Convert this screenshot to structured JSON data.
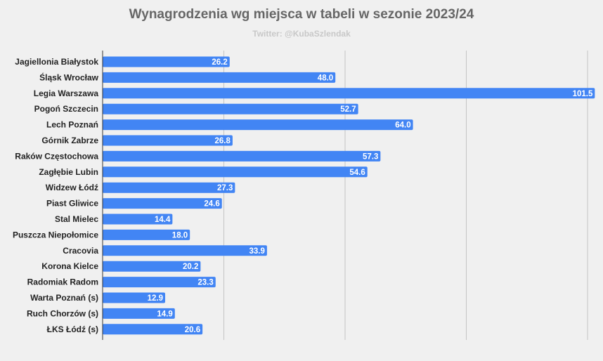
{
  "chart_data": {
    "type": "bar",
    "orientation": "horizontal",
    "title": "Wynagrodzenia wg miejsca w tabeli w sezonie 2023/24",
    "subtitle": "Twitter: @KubaSzlendak",
    "categories": [
      "Jagiellonia Białystok",
      "Śląsk Wrocław",
      "Legia Warszawa",
      "Pogoń Szczecin",
      "Lech Poznań",
      "Górnik Zabrze",
      "Raków Częstochowa",
      "Zagłębie Lubin",
      "Widzew Łódź",
      "Piast Gliwice",
      "Stal Mielec",
      "Puszcza Niepołomice",
      "Cracovia",
      "Korona Kielce",
      "Radomiak Radom",
      "Warta Poznań (s)",
      "Ruch Chorzów (s)",
      "ŁKS Łódź (s)"
    ],
    "values": [
      26.2,
      48.0,
      101.5,
      52.7,
      64.0,
      26.8,
      57.3,
      54.6,
      27.3,
      24.6,
      14.4,
      18.0,
      33.9,
      20.2,
      23.3,
      12.9,
      14.9,
      20.6
    ],
    "xlim": [
      0,
      102
    ],
    "gridlines": [
      25,
      50,
      75,
      100
    ],
    "grid": true,
    "tick_labels_shown": false,
    "data_labels": true,
    "legend": "none",
    "bar_color": "#4285f4",
    "xlabel": "",
    "ylabel": ""
  }
}
